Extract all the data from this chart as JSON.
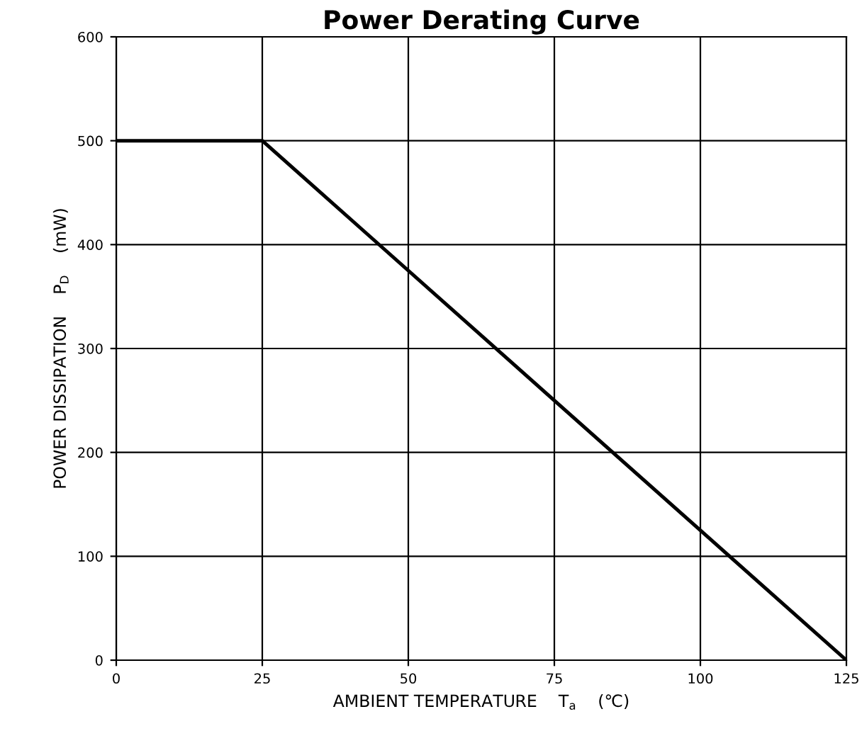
{
  "chart_data": {
    "type": "line",
    "title": "Power Derating Curve",
    "xlabel": "AMBIENT TEMPERATURE    T$_{a}$    (℃)",
    "ylabel": "POWER DISSIPATION    P$_{D}$    (mW)",
    "x": [
      0,
      25,
      125
    ],
    "series": [
      {
        "color": "#000000",
        "values": [
          500,
          500,
          0
        ]
      }
    ],
    "xlim": [
      0,
      125
    ],
    "xticks": [
      0,
      25,
      50,
      75,
      100,
      125
    ],
    "ylim": [
      0,
      600
    ],
    "yticks": [
      0,
      100,
      200,
      300,
      400,
      500,
      600
    ],
    "grid": true,
    "marker": "none",
    "line_style": "solid"
  }
}
